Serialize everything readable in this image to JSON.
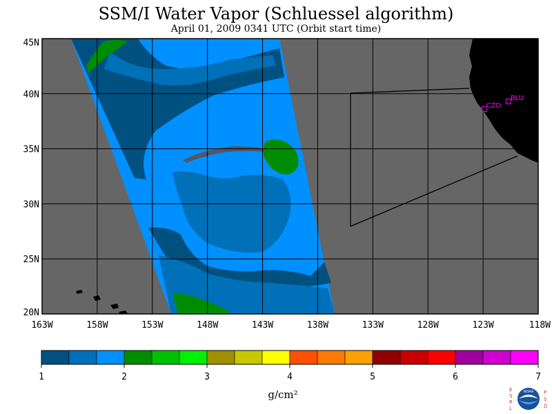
{
  "title": "SSM/I Water Vapor (Schluessel algorithm)",
  "subtitle": "April 01, 2009  0341 UTC  (Orbit start time)",
  "map": {
    "lat_labels": [
      "45N",
      "40N",
      "35N",
      "30N",
      "25N",
      "20N"
    ],
    "lon_labels": [
      "163W",
      "158W",
      "153W",
      "148W",
      "143W",
      "138W",
      "133W",
      "128W",
      "123W",
      "118W"
    ],
    "lat_range": [
      20,
      45
    ],
    "lon_range": [
      -163,
      -118
    ],
    "stations": [
      {
        "id": "CZD",
        "lon": -122.9,
        "lat": 38.6
      },
      {
        "id": "BLU",
        "lon": -120.7,
        "lat": 39.3
      }
    ],
    "land_color": "#000000",
    "nodata_color": "#666666",
    "grid": true
  },
  "colorbar": {
    "colors": [
      "#005080",
      "#0070b8",
      "#0090ff",
      "#008c00",
      "#00c000",
      "#00f000",
      "#a09000",
      "#c8c800",
      "#ffff00",
      "#ff5000",
      "#ff7800",
      "#ffa000",
      "#900000",
      "#c80000",
      "#ff0000",
      "#a000a0",
      "#d000d0",
      "#ff00ff"
    ],
    "tick_labels": [
      "1",
      "2",
      "3",
      "4",
      "5",
      "6",
      "7"
    ],
    "units": "g/cm²"
  },
  "logo": {
    "left_text": "ESRL",
    "right_text": "PSD",
    "center_text": "NOAA"
  }
}
